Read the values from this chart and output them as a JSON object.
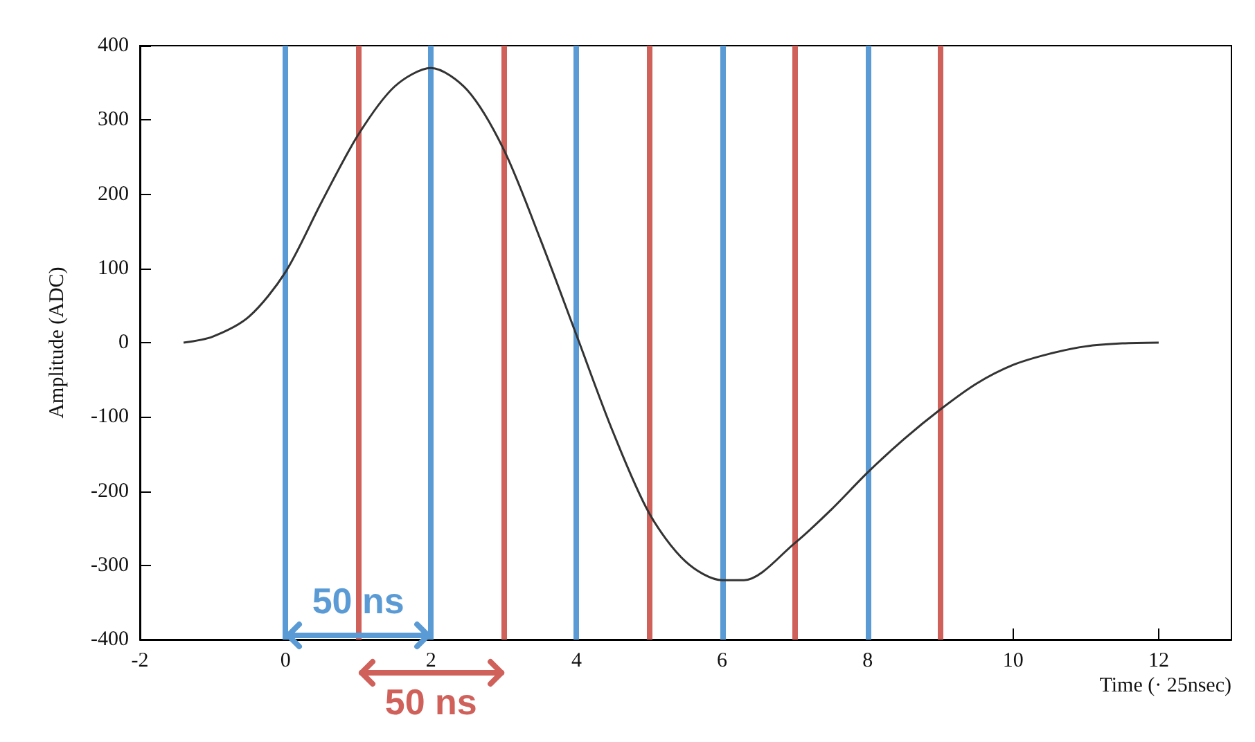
{
  "chart_data": {
    "type": "line",
    "xlabel": "Time (· 25nsec)",
    "ylabel": "Amplitude (ADC)",
    "x": [
      -1.4,
      -1,
      -0.5,
      0,
      0.5,
      1,
      1.5,
      2,
      2.5,
      3,
      3.5,
      4,
      4.5,
      5,
      5.5,
      6,
      6.3,
      7,
      7.5,
      8,
      8.5,
      9,
      9.5,
      10,
      10.5,
      11,
      11.5,
      12
    ],
    "series": [
      {
        "color": "#333333",
        "values": [
          0,
          8,
          35,
          95,
          190,
          280,
          345,
          370,
          340,
          260,
          140,
          10,
          -120,
          -230,
          -295,
          -320,
          -320,
          -270,
          -225,
          -175,
          -130,
          -90,
          -55,
          -30,
          -15,
          -5,
          -1,
          0
        ]
      }
    ],
    "xlim": [
      -2,
      13
    ],
    "xticks": [
      -2,
      0,
      2,
      4,
      6,
      8,
      10,
      12
    ],
    "ylim": [
      -400,
      400
    ],
    "yticks": [
      -400,
      -300,
      -200,
      -100,
      0,
      100,
      200,
      300,
      400
    ],
    "grid": false,
    "marker": "none",
    "line_style": "solid",
    "ref_lines": [
      {
        "axis": "x",
        "value": 0,
        "color": "#5b9bd5"
      },
      {
        "axis": "x",
        "value": 1,
        "color": "#d0605a"
      },
      {
        "axis": "x",
        "value": 2,
        "color": "#5b9bd5"
      },
      {
        "axis": "x",
        "value": 3,
        "color": "#d0605a"
      },
      {
        "axis": "x",
        "value": 4,
        "color": "#5b9bd5"
      },
      {
        "axis": "x",
        "value": 5,
        "color": "#d0605a"
      },
      {
        "axis": "x",
        "value": 6,
        "color": "#5b9bd5"
      },
      {
        "axis": "x",
        "value": 7,
        "color": "#d0605a"
      },
      {
        "axis": "x",
        "value": 8,
        "color": "#5b9bd5"
      },
      {
        "axis": "x",
        "value": 9,
        "color": "#d0605a"
      }
    ],
    "annotations": [
      "50 ns",
      "50 ns"
    ]
  }
}
